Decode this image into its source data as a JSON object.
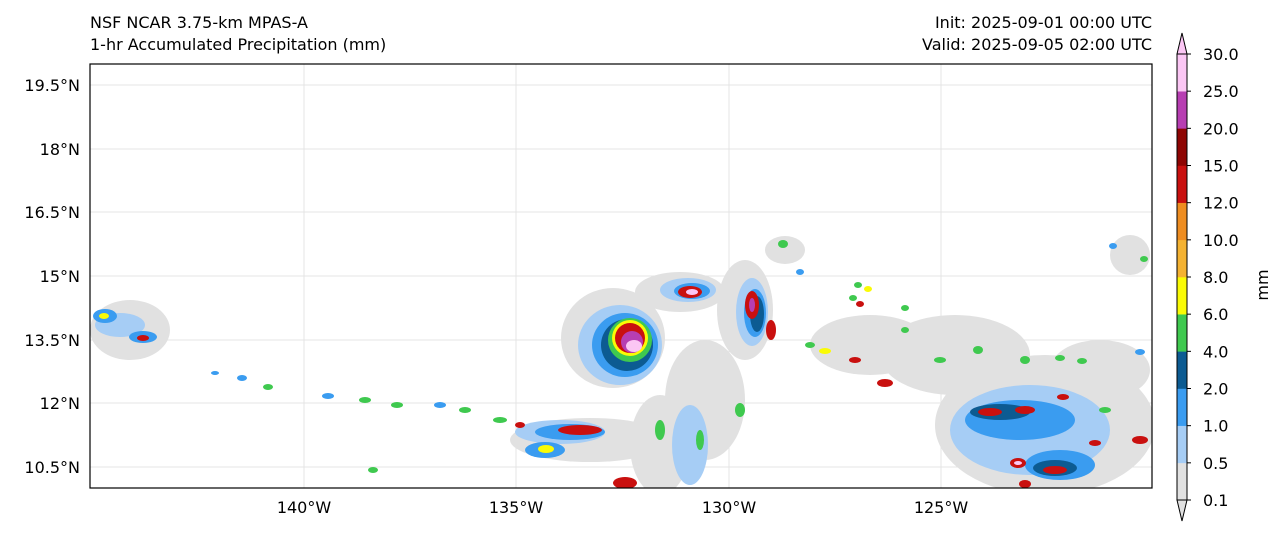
{
  "title": {
    "left_line1": "NSF NCAR 3.75-km MPAS-A",
    "left_line2": "1-hr Accumulated Precipitation (mm)",
    "right_line1": "Init: 2025-09-01 00:00 UTC",
    "right_line2": "Valid: 2025-09-05 02:00 UTC"
  },
  "map": {
    "lat_labels": [
      "19.5°N",
      "18°N",
      "16.5°N",
      "15°N",
      "13.5°N",
      "12°N",
      "10.5°N"
    ],
    "lon_labels": [
      "140°W",
      "135°W",
      "130°W",
      "125°W"
    ],
    "lat_values": [
      19.5,
      18,
      16.5,
      15,
      13.5,
      12,
      10.5
    ],
    "lon_values": [
      -140,
      -135,
      -130,
      -125
    ],
    "lat_range": [
      10.0,
      20.0
    ],
    "lon_range": [
      -145.0,
      -120.0
    ]
  },
  "colorbar": {
    "unit_label": "mm",
    "levels": [
      "0.1",
      "0.5",
      "1.0",
      "2.0",
      "4.0",
      "6.0",
      "8.0",
      "10.0",
      "12.0",
      "15.0",
      "20.0",
      "25.0",
      "30.0"
    ],
    "colors": [
      "#e1e1e1",
      "#a6cdf5",
      "#3a9cf0",
      "#0c5b92",
      "#3fc94f",
      "#fafb05",
      "#f4b232",
      "#ee8d21",
      "#c9100f",
      "#8e0503",
      "#b73eb2",
      "#fbc6f4"
    ]
  }
}
